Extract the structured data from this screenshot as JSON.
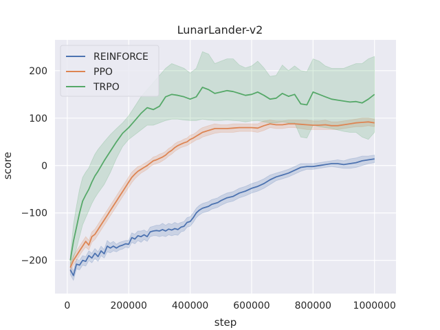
{
  "chart_data": {
    "type": "line",
    "title": "LunarLander-v2",
    "xlabel": "step",
    "ylabel": "score",
    "xlim": [
      -40000,
      1070000
    ],
    "ylim": [
      -270,
      265
    ],
    "x_ticks": [
      0,
      200000,
      400000,
      600000,
      800000,
      1000000
    ],
    "x_tick_labels": [
      "0",
      "200000",
      "400000",
      "600000",
      "800000",
      "1000000"
    ],
    "y_ticks": [
      -200,
      -100,
      0,
      100,
      200
    ],
    "y_tick_labels": [
      "−200",
      "−100",
      "0",
      "100",
      "200"
    ],
    "grid": true,
    "legend_position": "top-left",
    "background_color": "#eaeaf2",
    "grid_color": "#ffffff",
    "series": [
      {
        "name": "REINFORCE",
        "color": "#4c72b0",
        "x": [
          10000,
          20000,
          30000,
          40000,
          50000,
          60000,
          70000,
          80000,
          90000,
          100000,
          110000,
          120000,
          130000,
          140000,
          150000,
          160000,
          170000,
          180000,
          190000,
          200000,
          210000,
          220000,
          230000,
          240000,
          250000,
          260000,
          270000,
          280000,
          290000,
          300000,
          310000,
          320000,
          330000,
          340000,
          350000,
          360000,
          370000,
          380000,
          390000,
          400000,
          410000,
          420000,
          430000,
          440000,
          450000,
          460000,
          470000,
          480000,
          490000,
          500000,
          520000,
          540000,
          560000,
          580000,
          600000,
          620000,
          640000,
          660000,
          680000,
          700000,
          720000,
          740000,
          760000,
          780000,
          800000,
          820000,
          840000,
          860000,
          880000,
          900000,
          920000,
          940000,
          960000,
          980000,
          1000000
        ],
        "y": [
          -220,
          -232,
          -208,
          -210,
          -200,
          -202,
          -190,
          -195,
          -185,
          -192,
          -180,
          -186,
          -170,
          -174,
          -170,
          -174,
          -170,
          -168,
          -165,
          -166,
          -152,
          -155,
          -148,
          -150,
          -146,
          -150,
          -140,
          -138,
          -137,
          -138,
          -135,
          -138,
          -134,
          -136,
          -133,
          -135,
          -130,
          -128,
          -120,
          -118,
          -110,
          -100,
          -94,
          -90,
          -88,
          -86,
          -82,
          -80,
          -78,
          -74,
          -68,
          -65,
          -58,
          -54,
          -48,
          -44,
          -38,
          -30,
          -24,
          -20,
          -16,
          -10,
          -4,
          -2,
          -2,
          0,
          2,
          4,
          4,
          2,
          4,
          6,
          10,
          12,
          14
        ],
        "lower": [
          -230,
          -242,
          -218,
          -220,
          -210,
          -212,
          -200,
          -205,
          -196,
          -202,
          -190,
          -195,
          -182,
          -184,
          -180,
          -182,
          -178,
          -176,
          -172,
          -174,
          -162,
          -165,
          -158,
          -162,
          -156,
          -160,
          -150,
          -148,
          -148,
          -150,
          -148,
          -150,
          -146,
          -148,
          -146,
          -147,
          -140,
          -138,
          -130,
          -128,
          -120,
          -110,
          -104,
          -100,
          -98,
          -96,
          -92,
          -90,
          -88,
          -84,
          -78,
          -75,
          -68,
          -64,
          -58,
          -54,
          -48,
          -40,
          -32,
          -28,
          -24,
          -18,
          -12,
          -8,
          -8,
          -6,
          -4,
          -2,
          -4,
          -6,
          -6,
          -4,
          0,
          4,
          6
        ],
        "upper": [
          -210,
          -222,
          -198,
          -200,
          -190,
          -192,
          -180,
          -185,
          -175,
          -182,
          -170,
          -177,
          -158,
          -164,
          -160,
          -166,
          -162,
          -160,
          -158,
          -158,
          -142,
          -145,
          -138,
          -138,
          -136,
          -140,
          -130,
          -128,
          -126,
          -126,
          -122,
          -126,
          -122,
          -124,
          -120,
          -123,
          -120,
          -118,
          -110,
          -108,
          -100,
          -90,
          -84,
          -80,
          -78,
          -76,
          -72,
          -70,
          -68,
          -64,
          -58,
          -55,
          -48,
          -44,
          -38,
          -34,
          -28,
          -20,
          -16,
          -12,
          -8,
          -2,
          4,
          4,
          4,
          6,
          8,
          10,
          12,
          10,
          14,
          16,
          20,
          20,
          22
        ]
      },
      {
        "name": "PPO",
        "color": "#dd8452",
        "x": [
          10000,
          20000,
          30000,
          40000,
          50000,
          60000,
          70000,
          80000,
          90000,
          100000,
          110000,
          120000,
          130000,
          140000,
          150000,
          160000,
          170000,
          180000,
          190000,
          200000,
          210000,
          220000,
          230000,
          240000,
          250000,
          260000,
          270000,
          280000,
          290000,
          300000,
          310000,
          320000,
          330000,
          340000,
          350000,
          360000,
          370000,
          380000,
          390000,
          400000,
          410000,
          420000,
          430000,
          440000,
          450000,
          460000,
          470000,
          480000,
          500000,
          520000,
          540000,
          560000,
          580000,
          600000,
          620000,
          640000,
          660000,
          680000,
          700000,
          720000,
          740000,
          760000,
          780000,
          800000,
          820000,
          840000,
          860000,
          880000,
          900000,
          920000,
          940000,
          960000,
          980000,
          1000000
        ],
        "y": [
          -215,
          -200,
          -190,
          -180,
          -170,
          -160,
          -168,
          -150,
          -145,
          -135,
          -125,
          -115,
          -105,
          -95,
          -85,
          -75,
          -65,
          -55,
          -45,
          -35,
          -25,
          -18,
          -12,
          -8,
          -4,
          0,
          5,
          10,
          12,
          15,
          18,
          22,
          28,
          32,
          38,
          42,
          45,
          48,
          50,
          55,
          58,
          62,
          66,
          70,
          72,
          74,
          76,
          78,
          78,
          78,
          79,
          80,
          80,
          80,
          79,
          84,
          88,
          86,
          86,
          88,
          88,
          87,
          86,
          85,
          85,
          86,
          84,
          84,
          86,
          88,
          90,
          91,
          92,
          90
        ],
        "lower": [
          -225,
          -210,
          -200,
          -190,
          -180,
          -172,
          -178,
          -162,
          -156,
          -146,
          -136,
          -126,
          -116,
          -106,
          -96,
          -86,
          -76,
          -66,
          -56,
          -46,
          -36,
          -28,
          -22,
          -16,
          -12,
          -8,
          -2,
          2,
          4,
          6,
          10,
          14,
          20,
          24,
          30,
          34,
          38,
          40,
          42,
          46,
          50,
          54,
          56,
          60,
          62,
          64,
          66,
          68,
          70,
          70,
          70,
          72,
          72,
          72,
          70,
          74,
          80,
          78,
          78,
          80,
          80,
          78,
          76,
          76,
          76,
          76,
          76,
          76,
          78,
          80,
          82,
          82,
          84,
          82
        ],
        "upper": [
          -205,
          -190,
          -180,
          -170,
          -160,
          -150,
          -158,
          -140,
          -134,
          -124,
          -114,
          -104,
          -94,
          -84,
          -74,
          -64,
          -54,
          -44,
          -34,
          -24,
          -14,
          -8,
          -2,
          0,
          4,
          8,
          12,
          18,
          20,
          24,
          26,
          30,
          36,
          40,
          46,
          50,
          52,
          56,
          58,
          64,
          66,
          70,
          76,
          80,
          82,
          84,
          86,
          88,
          86,
          86,
          88,
          88,
          88,
          88,
          88,
          94,
          96,
          94,
          94,
          96,
          96,
          96,
          96,
          94,
          94,
          96,
          92,
          92,
          94,
          96,
          98,
          100,
          100,
          98
        ]
      },
      {
        "name": "TRPO",
        "color": "#55a868",
        "x": [
          10000,
          20000,
          30000,
          40000,
          50000,
          60000,
          70000,
          80000,
          90000,
          100000,
          120000,
          140000,
          160000,
          180000,
          200000,
          220000,
          240000,
          260000,
          280000,
          300000,
          320000,
          340000,
          360000,
          380000,
          400000,
          420000,
          440000,
          460000,
          480000,
          500000,
          520000,
          540000,
          560000,
          580000,
          600000,
          620000,
          640000,
          660000,
          680000,
          700000,
          720000,
          740000,
          760000,
          780000,
          800000,
          820000,
          840000,
          860000,
          880000,
          900000,
          920000,
          940000,
          960000,
          980000,
          1000000
        ],
        "y": [
          -200,
          -160,
          -130,
          -100,
          -75,
          -62,
          -50,
          -35,
          -22,
          -12,
          10,
          30,
          50,
          68,
          80,
          95,
          110,
          122,
          118,
          125,
          145,
          150,
          148,
          145,
          140,
          145,
          165,
          160,
          152,
          155,
          158,
          156,
          152,
          148,
          150,
          155,
          148,
          140,
          142,
          152,
          146,
          150,
          130,
          128,
          155,
          150,
          145,
          140,
          138,
          136,
          134,
          135,
          132,
          140,
          150
        ],
        "lower": [
          -210,
          -195,
          -175,
          -150,
          -125,
          -110,
          -95,
          -80,
          -68,
          -58,
          -40,
          -15,
          15,
          40,
          55,
          65,
          75,
          85,
          85,
          90,
          95,
          98,
          98,
          96,
          95,
          95,
          98,
          96,
          95,
          95,
          96,
          95,
          94,
          92,
          94,
          95,
          92,
          90,
          90,
          92,
          90,
          90,
          60,
          58,
          85,
          82,
          80,
          78,
          75,
          72,
          70,
          70,
          60,
          55,
          70
        ],
        "upper": [
          -190,
          -125,
          -85,
          -50,
          -25,
          -14,
          -5,
          10,
          24,
          34,
          50,
          65,
          78,
          90,
          105,
          125,
          145,
          160,
          175,
          190,
          205,
          215,
          210,
          205,
          195,
          205,
          240,
          235,
          215,
          220,
          225,
          225,
          212,
          206,
          210,
          220,
          206,
          188,
          190,
          212,
          200,
          210,
          200,
          198,
          225,
          220,
          210,
          205,
          205,
          205,
          210,
          215,
          215,
          225,
          230
        ]
      }
    ]
  }
}
